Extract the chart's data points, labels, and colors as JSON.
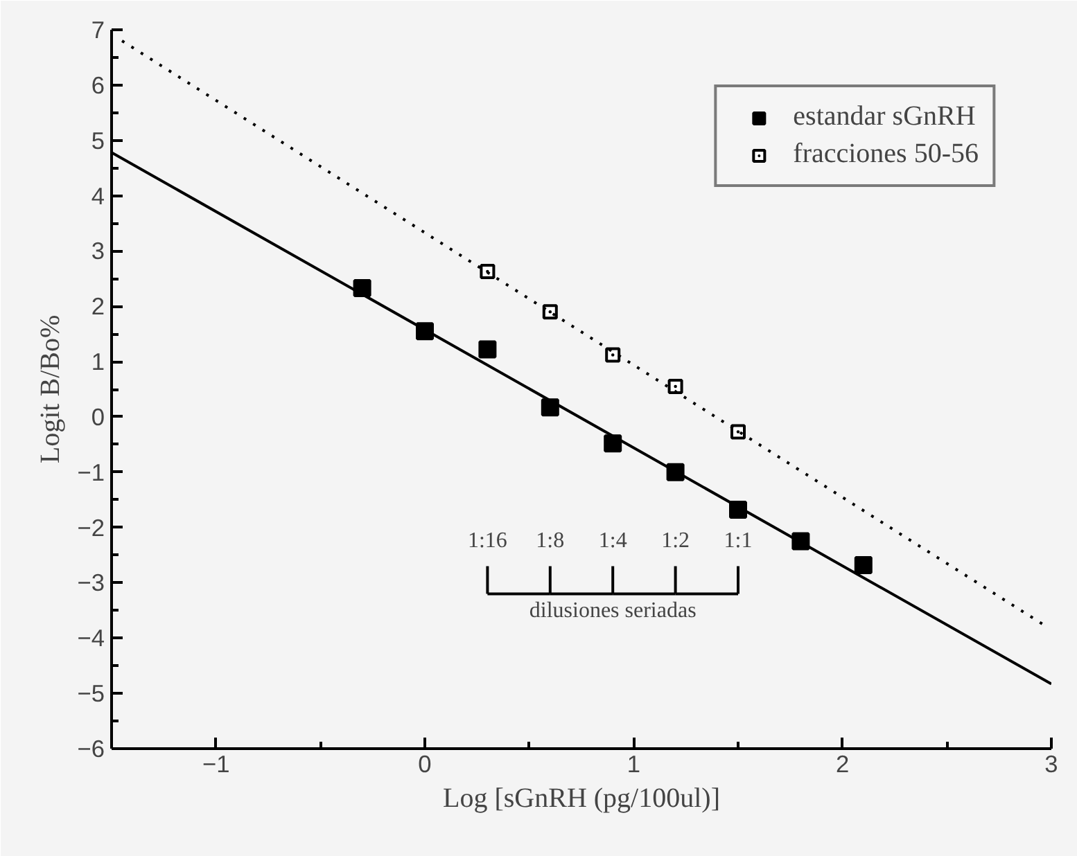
{
  "chart_data": {
    "type": "scatter",
    "xlabel": "Log [sGnRH (pg/100ul)]",
    "ylabel": "Logit B/Bo%",
    "xlim": [
      -1.5,
      3
    ],
    "ylim": [
      -6,
      7
    ],
    "xticks": [
      {
        "value": -1.5,
        "label": null
      },
      -1,
      {
        "value": -0.5,
        "label": null
      },
      0,
      {
        "value": 0.5,
        "label": null
      },
      1,
      {
        "value": 1.5,
        "label": null
      },
      2,
      {
        "value": 2.5,
        "label": null
      },
      3
    ],
    "yticks": [
      -6,
      {
        "value": -5.5,
        "label": null
      },
      -5,
      {
        "value": -4.5,
        "label": null
      },
      -4,
      {
        "value": -3.5,
        "label": null
      },
      -3,
      {
        "value": -2.5,
        "label": null
      },
      -2,
      {
        "value": -1.5,
        "label": null
      },
      -1,
      {
        "value": -0.5,
        "label": null
      },
      0,
      {
        "value": 0.5,
        "label": null
      },
      1,
      {
        "value": 1.5,
        "label": null
      },
      2,
      {
        "value": 2.5,
        "label": null
      },
      3,
      {
        "value": 3.5,
        "label": null
      },
      4,
      {
        "value": 4.5,
        "label": null
      },
      5,
      {
        "value": 5.5,
        "label": null
      },
      6,
      {
        "value": 6.5,
        "label": null
      },
      7
    ],
    "grid": false,
    "legend": "top right",
    "series": [
      {
        "name": "estandar sGnRH",
        "marker": "square",
        "color": "#000000",
        "x": [
          -0.3,
          0,
          0.3,
          0.6,
          0.9,
          1.2,
          1.5,
          1.8,
          2.1
        ],
        "values": [
          2.33,
          1.55,
          1.22,
          0.17,
          -0.48,
          -1.0,
          -1.68,
          -2.25,
          -2.68
        ]
      },
      {
        "name": "fracciones 50-56",
        "marker": "square_dot",
        "color": "#000000",
        "x": [
          0.3,
          0.6,
          0.9,
          1.2,
          1.5
        ],
        "values": [
          2.63,
          1.9,
          1.12,
          0.55,
          -0.27
        ]
      },
      {
        "type": "line",
        "line_style": "solid",
        "color": "#000000",
        "x": [
          -1.5,
          3
        ],
        "values": [
          4.78,
          -4.83
        ]
      },
      {
        "type": "line",
        "line_style": "dotted",
        "color": "#000000",
        "x": [
          -1.45,
          2.98
        ],
        "values": [
          6.8,
          -3.8
        ]
      }
    ],
    "annotations": [
      "1:16",
      "1:8",
      "1:4",
      "1:2",
      "1:1",
      "dilusiones seriadas"
    ]
  }
}
